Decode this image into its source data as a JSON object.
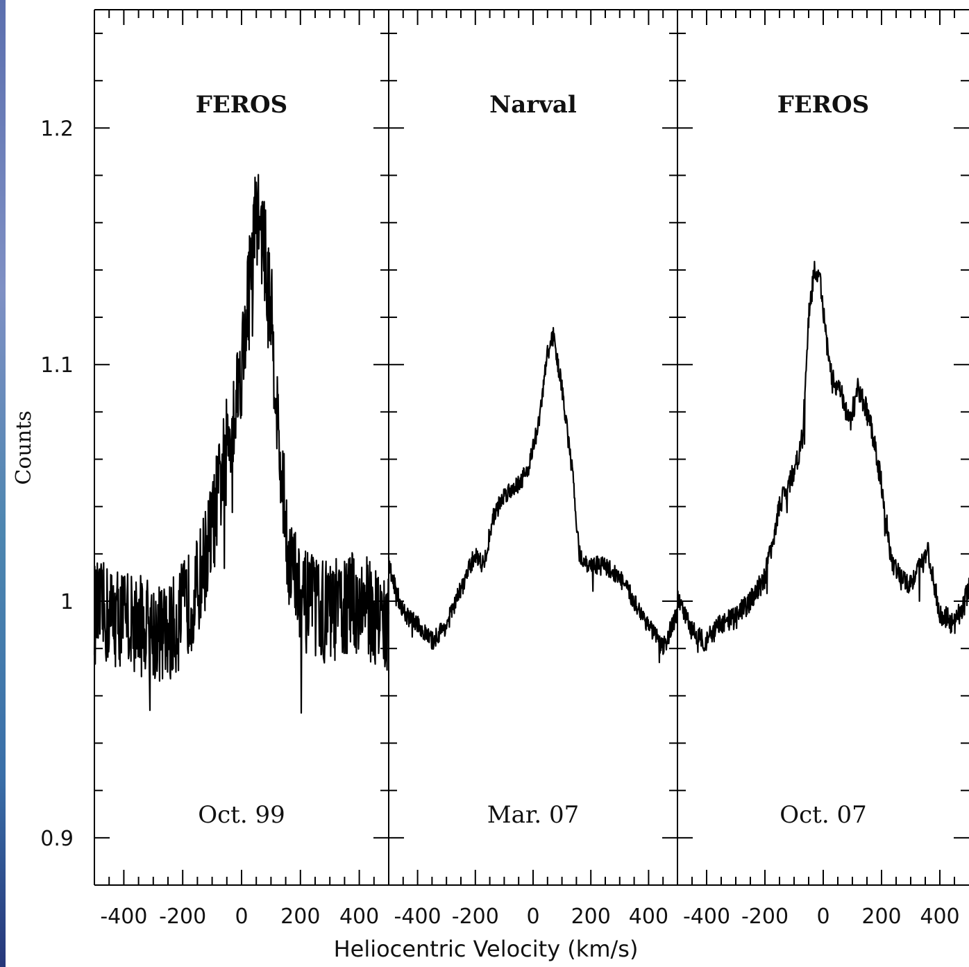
{
  "chart_data": {
    "type": "line",
    "ylabel": "Counts",
    "xlabel": "Heliocentric Velocity (km/s)",
    "ylim": [
      0.88,
      1.25
    ],
    "yticks": [
      0.9,
      1,
      1.1,
      1.2
    ],
    "ytick_labels": [
      "0.9",
      "1",
      "1.1",
      "1.2"
    ],
    "xlim": [
      -500,
      500
    ],
    "xticks": [
      -400,
      -200,
      0,
      200,
      400
    ],
    "xtick_labels": [
      "-400",
      "-200",
      "0",
      "200",
      "400"
    ],
    "panels": [
      {
        "instrument": "FEROS",
        "date": "Oct. 99",
        "noise": 0.022,
        "profile": [
          [
            -500,
            0.995
          ],
          [
            -400,
            0.993
          ],
          [
            -300,
            0.988
          ],
          [
            -250,
            0.985
          ],
          [
            -200,
            0.995
          ],
          [
            -150,
            1.005
          ],
          [
            -100,
            1.03
          ],
          [
            -50,
            1.065
          ],
          [
            -20,
            1.085
          ],
          [
            0,
            1.1
          ],
          [
            30,
            1.14
          ],
          [
            50,
            1.165
          ],
          [
            70,
            1.155
          ],
          [
            100,
            1.125
          ],
          [
            130,
            1.06
          ],
          [
            160,
            1.02
          ],
          [
            200,
            1.0
          ],
          [
            300,
            0.995
          ],
          [
            400,
            1.0
          ],
          [
            500,
            0.99
          ]
        ]
      },
      {
        "instrument": "Narval",
        "date": "Mar. 07",
        "noise": 0.004,
        "profile": [
          [
            -500,
            1.015
          ],
          [
            -450,
            0.995
          ],
          [
            -400,
            0.99
          ],
          [
            -350,
            0.983
          ],
          [
            -300,
            0.99
          ],
          [
            -250,
            1.005
          ],
          [
            -200,
            1.02
          ],
          [
            -170,
            1.015
          ],
          [
            -140,
            1.035
          ],
          [
            -100,
            1.045
          ],
          [
            -50,
            1.05
          ],
          [
            -20,
            1.055
          ],
          [
            20,
            1.075
          ],
          [
            50,
            1.105
          ],
          [
            70,
            1.112
          ],
          [
            100,
            1.09
          ],
          [
            140,
            1.05
          ],
          [
            160,
            1.02
          ],
          [
            180,
            1.015
          ],
          [
            250,
            1.015
          ],
          [
            300,
            1.01
          ],
          [
            350,
            1.0
          ],
          [
            400,
            0.99
          ],
          [
            450,
            0.98
          ],
          [
            500,
            0.995
          ]
        ]
      },
      {
        "instrument": "FEROS",
        "date": "Oct. 07",
        "noise": 0.005,
        "profile": [
          [
            -500,
            1.0
          ],
          [
            -450,
            0.988
          ],
          [
            -400,
            0.983
          ],
          [
            -350,
            0.99
          ],
          [
            -300,
            0.993
          ],
          [
            -250,
            1.0
          ],
          [
            -200,
            1.01
          ],
          [
            -150,
            1.04
          ],
          [
            -100,
            1.055
          ],
          [
            -70,
            1.07
          ],
          [
            -50,
            1.12
          ],
          [
            -30,
            1.14
          ],
          [
            -10,
            1.135
          ],
          [
            10,
            1.11
          ],
          [
            30,
            1.095
          ],
          [
            60,
            1.088
          ],
          [
            90,
            1.075
          ],
          [
            120,
            1.09
          ],
          [
            150,
            1.08
          ],
          [
            170,
            1.07
          ],
          [
            200,
            1.05
          ],
          [
            230,
            1.02
          ],
          [
            260,
            1.01
          ],
          [
            300,
            1.008
          ],
          [
            330,
            1.015
          ],
          [
            360,
            1.02
          ],
          [
            400,
            0.995
          ],
          [
            450,
            0.99
          ],
          [
            500,
            1.005
          ]
        ]
      }
    ]
  }
}
